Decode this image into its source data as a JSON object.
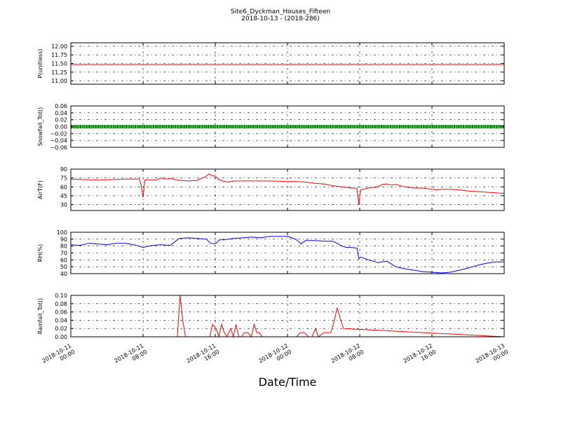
{
  "title": "Site6_Dyckman_Houses_Fifteen",
  "subtitle": "2018-10-13 - (2018-286)",
  "xlabel": "Date/Time",
  "x_ticks": [
    {
      "line1": "2018-10-11",
      "line2": "00:00"
    },
    {
      "line1": "2018-10-11",
      "line2": "08:00"
    },
    {
      "line1": "2018-10-11",
      "line2": "16:00"
    },
    {
      "line1": "2018-10-12",
      "line2": "00:00"
    },
    {
      "line1": "2018-10-12",
      "line2": "08:00"
    },
    {
      "line1": "2018-10-12",
      "line2": "16:00"
    },
    {
      "line1": "2018-10-13",
      "line2": "00:00"
    }
  ],
  "chart_data": [
    {
      "type": "line",
      "ylabel": "P(unitless)",
      "ylim": [
        10.9,
        12.1
      ],
      "yticks": [
        "11.00",
        "11.25",
        "11.50",
        "11.75",
        "12.00"
      ],
      "ytick_values": [
        11.0,
        11.25,
        11.5,
        11.75,
        12.0
      ],
      "color": "#ff0000",
      "grid": true,
      "series": [
        {
          "x": [
            0,
            48
          ],
          "y": [
            11.47,
            11.47
          ]
        }
      ]
    },
    {
      "type": "line",
      "ylabel": "Snowfall_Tot()",
      "ylim": [
        -0.06,
        0.06
      ],
      "yticks": [
        "0.06",
        "0.04",
        "0.02",
        "0.00",
        "−0.02",
        "−0.04",
        "−0.06"
      ],
      "ytick_values": [
        0.06,
        0.04,
        0.02,
        0.0,
        -0.02,
        -0.04,
        -0.06
      ],
      "color": "#008000",
      "markers": true,
      "grid": true,
      "series": [
        {
          "x": [
            0,
            48
          ],
          "y": [
            0.0,
            0.0
          ]
        }
      ]
    },
    {
      "type": "line",
      "ylabel": "AirT(F)",
      "ylim": [
        20,
        90
      ],
      "yticks": [
        "90",
        "75",
        "60",
        "45",
        "30"
      ],
      "ytick_values": [
        90,
        75,
        60,
        45,
        30
      ],
      "color": "#ff0000",
      "grid": true,
      "series": [
        {
          "x": [
            0,
            2,
            4,
            6,
            7.6,
            7.8,
            8.0,
            8.2,
            9,
            9.5,
            10,
            10.5,
            11,
            12,
            13,
            14,
            15,
            15.3,
            15.6,
            16,
            16.4,
            17,
            17.5,
            18,
            19,
            20,
            22,
            24,
            25,
            26,
            27,
            28,
            29,
            30,
            31,
            31.5,
            31.7,
            31.9,
            32.1,
            33,
            34,
            34.5,
            35,
            35.5,
            36,
            37,
            38,
            39,
            40,
            40.5,
            41,
            42,
            43,
            44,
            45,
            46,
            47,
            48
          ],
          "y": [
            73,
            72,
            72,
            73,
            73,
            62,
            42,
            72,
            72,
            72,
            75,
            73,
            74,
            71,
            70,
            71,
            78,
            82,
            79,
            78,
            72,
            69,
            68,
            70,
            70,
            70,
            70,
            69,
            69,
            68,
            66,
            65,
            62,
            60,
            58,
            58,
            57,
            30,
            55,
            58,
            60,
            64,
            65,
            63,
            64,
            60,
            58,
            58,
            56,
            55,
            56,
            56,
            55,
            53,
            52,
            51,
            50,
            49
          ]
        }
      ]
    },
    {
      "type": "line",
      "ylabel": "RH(%)",
      "ylim": [
        40,
        100
      ],
      "yticks": [
        "100",
        "90",
        "80",
        "70",
        "60",
        "50",
        "40"
      ],
      "ytick_values": [
        100,
        90,
        80,
        70,
        60,
        50,
        40
      ],
      "color": "#0000ff",
      "grid": true,
      "series": [
        {
          "x": [
            0,
            1,
            2,
            3,
            4,
            5,
            6,
            7,
            8,
            9,
            10,
            11,
            11.5,
            12,
            13,
            14,
            15,
            15.5,
            16,
            16.5,
            17,
            18,
            19,
            20,
            21,
            22,
            23,
            24,
            24.5,
            25,
            25.5,
            26,
            27,
            28,
            29,
            29.5,
            30,
            30.5,
            31,
            31.7,
            31.9,
            32.1,
            33,
            34,
            35,
            36,
            37,
            38,
            39,
            40,
            41,
            42,
            43,
            44,
            45,
            46,
            47,
            48
          ],
          "y": [
            82,
            81,
            84,
            83,
            82,
            84,
            84,
            82,
            78,
            81,
            82,
            81,
            86,
            91,
            92,
            91,
            90,
            84,
            83,
            89,
            89,
            91,
            92,
            93,
            92,
            94,
            94,
            94,
            92,
            89,
            83,
            88,
            88,
            87,
            87,
            84,
            80,
            78,
            78,
            77,
            62,
            64,
            60,
            56,
            58,
            50,
            47,
            45,
            43,
            42,
            41,
            42,
            45,
            48,
            52,
            55,
            57,
            57
          ]
        }
      ]
    },
    {
      "type": "line",
      "ylabel": "Rainfall_Tot()",
      "ylim": [
        0,
        0.1
      ],
      "yticks": [
        "0.10",
        "0.08",
        "0.06",
        "0.04",
        "0.02",
        "0.00"
      ],
      "ytick_values": [
        0.1,
        0.08,
        0.06,
        0.04,
        0.02,
        0.0
      ],
      "color": "#ff0000",
      "grid": true,
      "series": [
        {
          "x": [
            0,
            11.8,
            12.1,
            12.4,
            12.7,
            13,
            15.4,
            15.7,
            16.1,
            16.4,
            16.7,
            17.0,
            17.3,
            17.7,
            18.0,
            18.3,
            18.6,
            18.9,
            19.2,
            19.6,
            20.0,
            20.3,
            20.6,
            20.9,
            21.2,
            21.6,
            22,
            24,
            25,
            25.4,
            25.9,
            26.3,
            26.7,
            27.1,
            27.4,
            28.0,
            28.4,
            28.8,
            29.2,
            29.5,
            29.9,
            30.2,
            48
          ],
          "y": [
            0,
            0,
            0.1,
            0.04,
            0.0,
            0,
            0,
            0.03,
            0.02,
            0.0,
            0.03,
            0.01,
            0.0,
            0.02,
            0.0,
            0.03,
            0.0,
            0.0,
            0.01,
            0.01,
            0.0,
            0.03,
            0.01,
            0.01,
            0.0,
            0.0,
            0,
            0,
            0,
            0.01,
            0.01,
            0.0,
            0.0,
            0.02,
            0.0,
            0.01,
            0.01,
            0.01,
            0.04,
            0.07,
            0.04,
            0.02,
            0
          ]
        }
      ]
    }
  ]
}
